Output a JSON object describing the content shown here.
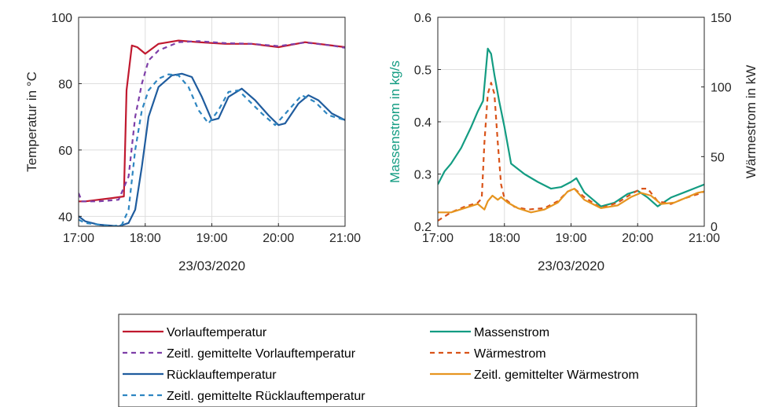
{
  "chart_data": [
    {
      "type": "line",
      "xlabel": "23/03/2020",
      "ylabel": "Temperatur in °C",
      "x_ticks": [
        "17:00",
        "18:00",
        "19:00",
        "20:00",
        "21:00"
      ],
      "xlim": [
        17,
        21
      ],
      "ylim": [
        37,
        100
      ],
      "y_ticks": [
        40,
        60,
        80,
        100
      ],
      "grid": true,
      "series": [
        {
          "name": "Vorlauftemperatur",
          "color": "#C0192F",
          "dash": "solid",
          "x": [
            17.0,
            17.1,
            17.3,
            17.5,
            17.68,
            17.72,
            17.8,
            17.88,
            18.0,
            18.2,
            18.5,
            18.8,
            19.2,
            19.6,
            20.0,
            20.4,
            20.8,
            21.0
          ],
          "y": [
            44.5,
            44.5,
            45,
            45.5,
            46,
            78,
            91.5,
            91,
            89,
            92,
            93,
            92.5,
            92,
            92,
            91,
            92.5,
            91.5,
            91
          ]
        },
        {
          "name": "Zeitl. gemittelte Vorlauftemperatur",
          "color": "#7E3FA8",
          "dash": "6,5",
          "x": [
            17.0,
            17.05,
            17.3,
            17.6,
            17.75,
            17.85,
            17.95,
            18.05,
            18.2,
            18.5,
            18.8,
            19.2,
            19.6,
            20.0,
            20.4,
            20.8,
            21.0
          ],
          "y": [
            47,
            44.5,
            44.5,
            45,
            52,
            70,
            80,
            87,
            90,
            92.5,
            92.8,
            92.2,
            92,
            91.3,
            92.4,
            91.5,
            90.8
          ]
        },
        {
          "name": "Rücklauftemperatur",
          "color": "#1F5C9E",
          "dash": "solid",
          "x": [
            17.0,
            17.1,
            17.3,
            17.6,
            17.75,
            17.85,
            17.95,
            18.05,
            18.2,
            18.4,
            18.55,
            18.7,
            18.85,
            19.0,
            19.1,
            19.25,
            19.45,
            19.65,
            19.85,
            20.0,
            20.1,
            20.3,
            20.45,
            20.6,
            20.8,
            21.0
          ],
          "y": [
            40,
            38.5,
            37.5,
            37,
            38,
            42,
            55,
            70,
            79,
            82.5,
            83,
            82,
            76,
            69,
            69.5,
            76,
            78.5,
            75,
            70.5,
            67.5,
            68,
            74,
            76.5,
            75,
            71,
            69
          ]
        },
        {
          "name": "Zeitl. gemittelte Rücklauftemperatur",
          "color": "#2E86C1",
          "dash": "6,5",
          "x": [
            17.0,
            17.1,
            17.3,
            17.5,
            17.65,
            17.75,
            17.85,
            17.95,
            18.05,
            18.2,
            18.35,
            18.5,
            18.65,
            18.8,
            18.95,
            19.1,
            19.25,
            19.4,
            19.55,
            19.75,
            19.95,
            20.15,
            20.35,
            20.55,
            20.75,
            21.0
          ],
          "y": [
            39,
            38,
            37.5,
            37,
            37.5,
            42,
            60,
            72,
            78,
            81.5,
            82.8,
            82.5,
            79,
            72,
            68,
            72,
            77.5,
            78,
            75,
            71,
            67.5,
            72,
            76.5,
            74.5,
            70.5,
            69
          ]
        }
      ]
    },
    {
      "type": "line",
      "xlabel": "23/03/2020",
      "ylabel": "Massenstrom in kg/s",
      "ylabel_right": "Wärmestrom in kW",
      "x_ticks": [
        "17:00",
        "18:00",
        "19:00",
        "20:00",
        "21:00"
      ],
      "xlim": [
        17,
        21
      ],
      "ylim": [
        0.2,
        0.6
      ],
      "y_ticks": [
        0.2,
        0.3,
        0.4,
        0.5,
        0.6
      ],
      "y_tick_labels": [
        "0.2",
        "0.3",
        "0.4",
        "0.5",
        "0.6"
      ],
      "ylim_right": [
        0,
        150
      ],
      "y_ticks_right": [
        0,
        50,
        100,
        150
      ],
      "grid": true,
      "series": [
        {
          "name": "Massenstrom",
          "axis": "left",
          "color": "#139C82",
          "dash": "solid",
          "x": [
            17.0,
            17.1,
            17.2,
            17.35,
            17.5,
            17.6,
            17.68,
            17.75,
            17.8,
            17.85,
            17.92,
            18.0,
            18.1,
            18.3,
            18.5,
            18.7,
            18.85,
            19.0,
            19.08,
            19.2,
            19.45,
            19.65,
            19.85,
            20.0,
            20.15,
            20.3,
            20.5,
            20.7,
            20.9,
            21.0
          ],
          "y": [
            0.28,
            0.305,
            0.32,
            0.35,
            0.39,
            0.42,
            0.44,
            0.54,
            0.53,
            0.49,
            0.44,
            0.39,
            0.32,
            0.3,
            0.285,
            0.272,
            0.275,
            0.285,
            0.292,
            0.265,
            0.238,
            0.245,
            0.262,
            0.268,
            0.255,
            0.238,
            0.255,
            0.265,
            0.275,
            0.28
          ]
        },
        {
          "name": "Wärmestrom",
          "axis": "right",
          "color": "#D95319",
          "dash": "6,5",
          "x": [
            17.0,
            17.2,
            17.4,
            17.6,
            17.66,
            17.7,
            17.75,
            17.8,
            17.85,
            17.9,
            17.95,
            18.0,
            18.15,
            18.35,
            18.6,
            18.8,
            18.95,
            19.05,
            19.2,
            19.45,
            19.7,
            19.9,
            20.05,
            20.15,
            20.3,
            20.5,
            20.7,
            20.9,
            21.0
          ],
          "y": [
            4,
            10,
            14,
            17,
            20,
            60,
            95,
            103,
            95,
            60,
            30,
            20,
            14,
            12,
            13,
            18,
            25,
            27,
            21,
            13,
            17,
            23,
            27,
            27,
            18,
            16,
            20,
            23,
            25
          ]
        },
        {
          "name": "Zeitl. gemittelter Wärmestrom",
          "axis": "right",
          "color": "#E69520",
          "dash": "solid",
          "x": [
            17.0,
            17.2,
            17.4,
            17.6,
            17.7,
            17.75,
            17.82,
            17.9,
            17.95,
            18.05,
            18.2,
            18.4,
            18.6,
            18.8,
            18.95,
            19.05,
            19.2,
            19.45,
            19.7,
            19.9,
            20.05,
            20.2,
            20.35,
            20.55,
            20.75,
            20.9,
            21.0
          ],
          "y": [
            10,
            10,
            13,
            16,
            12,
            18,
            22,
            19,
            21,
            17,
            13,
            10,
            12,
            17,
            25,
            27,
            19,
            13,
            15,
            21,
            24,
            22,
            16,
            17,
            21,
            24,
            25
          ]
        }
      ]
    }
  ]
}
